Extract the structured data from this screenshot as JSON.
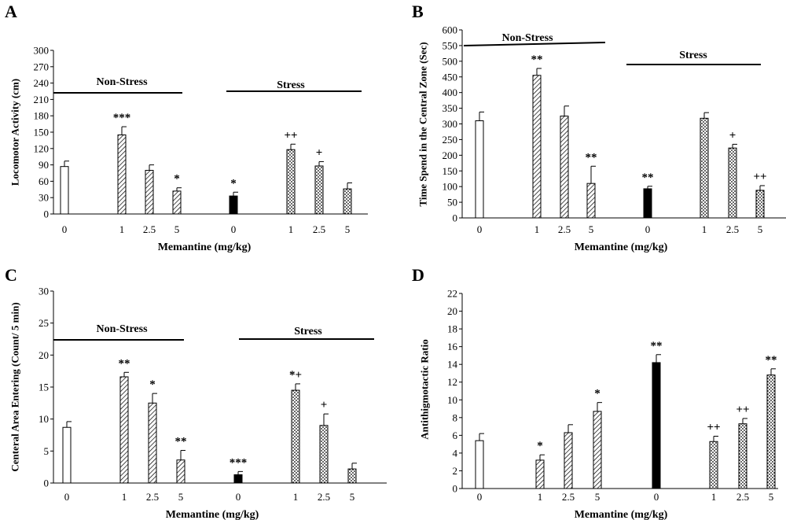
{
  "chart_data": [
    {
      "type": "bar",
      "panel_label": "A",
      "ylabel": "Locomotor Activity (cm)",
      "xlabel": "Memantine (mg/kg)",
      "yticks": [
        0,
        30,
        60,
        90,
        120,
        150,
        180,
        210,
        240,
        270,
        300
      ],
      "ylim": [
        0,
        300
      ],
      "groups": [
        "Non-Stress",
        "Stress"
      ],
      "bars": [
        {
          "group": "Non-Stress",
          "dose": "0",
          "value": 87,
          "error": 10,
          "fill": "open",
          "sig": ""
        },
        {
          "group": "Non-Stress",
          "dose": "1",
          "value": 145,
          "error": 15,
          "fill": "hatch",
          "sig": "***"
        },
        {
          "group": "Non-Stress",
          "dose": "2.5",
          "value": 80,
          "error": 10,
          "fill": "hatch",
          "sig": ""
        },
        {
          "group": "Non-Stress",
          "dose": "5",
          "value": 42,
          "error": 6,
          "fill": "hatch",
          "sig": "*"
        },
        {
          "group": "Stress",
          "dose": "0",
          "value": 33,
          "error": 7,
          "fill": "solid",
          "sig": "*"
        },
        {
          "group": "Stress",
          "dose": "1",
          "value": 118,
          "error": 10,
          "fill": "dots",
          "sig": "++"
        },
        {
          "group": "Stress",
          "dose": "2.5",
          "value": 88,
          "error": 8,
          "fill": "dots",
          "sig": "+"
        },
        {
          "group": "Stress",
          "dose": "5",
          "value": 46,
          "error": 11,
          "fill": "dots",
          "sig": ""
        }
      ]
    },
    {
      "type": "bar",
      "panel_label": "B",
      "ylabel": "Time Spend in the Central Zone (Sec)",
      "xlabel": "Memantine (mg/kg)",
      "yticks": [
        0,
        50,
        100,
        150,
        200,
        250,
        300,
        350,
        400,
        450,
        500,
        550,
        600
      ],
      "ylim": [
        0,
        600
      ],
      "groups": [
        "Non-Stress",
        "Stress"
      ],
      "bars": [
        {
          "group": "Non-Stress",
          "dose": "0",
          "value": 310,
          "error": 28,
          "fill": "open",
          "sig": ""
        },
        {
          "group": "Non-Stress",
          "dose": "1",
          "value": 455,
          "error": 22,
          "fill": "hatch",
          "sig": "**"
        },
        {
          "group": "Non-Stress",
          "dose": "2.5",
          "value": 325,
          "error": 32,
          "fill": "hatch",
          "sig": ""
        },
        {
          "group": "Non-Stress",
          "dose": "5",
          "value": 110,
          "error": 55,
          "fill": "hatch",
          "sig": "**"
        },
        {
          "group": "Stress",
          "dose": "0",
          "value": 93,
          "error": 8,
          "fill": "solid",
          "sig": "**"
        },
        {
          "group": "Stress",
          "dose": "1",
          "value": 318,
          "error": 18,
          "fill": "dots",
          "sig": ""
        },
        {
          "group": "Stress",
          "dose": "2.5",
          "value": 223,
          "error": 12,
          "fill": "dots",
          "sig": "+"
        },
        {
          "group": "Stress",
          "dose": "5",
          "value": 88,
          "error": 15,
          "fill": "dots",
          "sig": "++"
        }
      ]
    },
    {
      "type": "bar",
      "panel_label": "C",
      "ylabel": "Centeral Area Entering (Count/ 5 min)",
      "xlabel": "Memantine (mg/kg)",
      "yticks": [
        0,
        5,
        10,
        15,
        20,
        25,
        30
      ],
      "ylim": [
        0,
        30
      ],
      "groups": [
        "Non-Stress",
        "Stress"
      ],
      "bars": [
        {
          "group": "Non-Stress",
          "dose": "0",
          "value": 8.7,
          "error": 0.9,
          "fill": "open",
          "sig": ""
        },
        {
          "group": "Non-Stress",
          "dose": "1",
          "value": 16.6,
          "error": 0.7,
          "fill": "hatch",
          "sig": "**"
        },
        {
          "group": "Non-Stress",
          "dose": "2.5",
          "value": 12.5,
          "error": 1.5,
          "fill": "hatch",
          "sig": "*"
        },
        {
          "group": "Non-Stress",
          "dose": "5",
          "value": 3.6,
          "error": 1.5,
          "fill": "hatch",
          "sig": "**"
        },
        {
          "group": "Stress",
          "dose": "0",
          "value": 1.3,
          "error": 0.5,
          "fill": "solid",
          "sig": "***"
        },
        {
          "group": "Stress",
          "dose": "1",
          "value": 14.5,
          "error": 1.0,
          "fill": "dots",
          "sig": "*+"
        },
        {
          "group": "Stress",
          "dose": "2.5",
          "value": 9.0,
          "error": 1.8,
          "fill": "dots",
          "sig": "+"
        },
        {
          "group": "Stress",
          "dose": "5",
          "value": 2.2,
          "error": 0.9,
          "fill": "dots",
          "sig": ""
        }
      ]
    },
    {
      "type": "bar",
      "panel_label": "D",
      "ylabel": "Antithigmotactic Ratio",
      "xlabel": "Memantine (mg/kg)",
      "yticks": [
        0,
        2,
        4,
        6,
        8,
        10,
        12,
        14,
        16,
        18,
        20,
        22
      ],
      "ylim": [
        0,
        22
      ],
      "groups": [],
      "bars": [
        {
          "group": "Non-Stress",
          "dose": "0",
          "value": 5.4,
          "error": 0.8,
          "fill": "open",
          "sig": ""
        },
        {
          "group": "Non-Stress",
          "dose": "1",
          "value": 3.2,
          "error": 0.6,
          "fill": "hatch",
          "sig": "*"
        },
        {
          "group": "Non-Stress",
          "dose": "2.5",
          "value": 6.3,
          "error": 0.9,
          "fill": "hatch",
          "sig": ""
        },
        {
          "group": "Non-Stress",
          "dose": "5",
          "value": 8.7,
          "error": 1.0,
          "fill": "hatch",
          "sig": "*"
        },
        {
          "group": "Stress",
          "dose": "0",
          "value": 14.2,
          "error": 0.9,
          "fill": "solid",
          "sig": "**"
        },
        {
          "group": "Stress",
          "dose": "1",
          "value": 5.3,
          "error": 0.6,
          "fill": "dots",
          "sig": "++"
        },
        {
          "group": "Stress",
          "dose": "2.5",
          "value": 7.3,
          "error": 0.6,
          "fill": "dots",
          "sig": "++"
        },
        {
          "group": "Stress",
          "dose": "5",
          "value": 12.8,
          "error": 0.7,
          "fill": "dots",
          "sig": "**"
        }
      ]
    }
  ]
}
